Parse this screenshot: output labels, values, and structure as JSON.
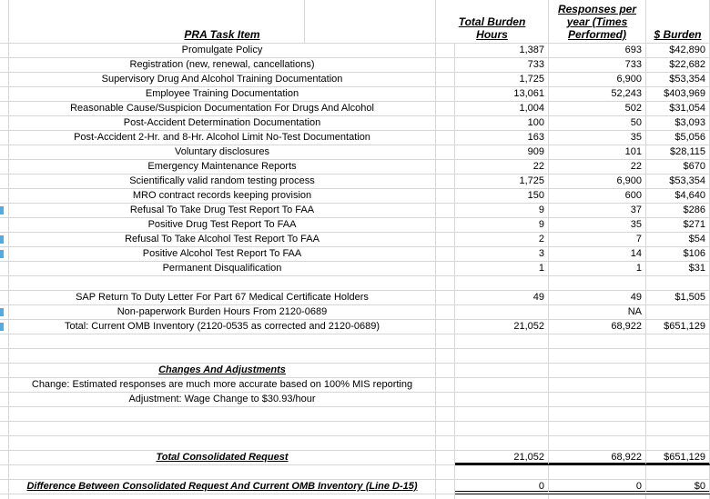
{
  "sheet": {
    "columns": {
      "task_item": "PRA Task Item",
      "total_burden_hours": "Total Burden Hours",
      "responses_per_year": "Responses per year (Times Performed)",
      "dollar_burden": "$ Burden"
    },
    "rows": [
      {
        "item": "Promulgate Policy",
        "hours": "1,387",
        "responses": "693",
        "burden": "$42,890"
      },
      {
        "item": "Registration (new, renewal, cancellations)",
        "hours": "733",
        "responses": "733",
        "burden": "$22,682"
      },
      {
        "item": "Supervisory Drug And Alcohol Training Documentation",
        "hours": "1,725",
        "responses": "6,900",
        "burden": "$53,354"
      },
      {
        "item": "Employee Training Documentation",
        "hours": "13,061",
        "responses": "52,243",
        "burden": "$403,969"
      },
      {
        "item": "Reasonable Cause/Suspicion Documentation For Drugs And Alcohol",
        "hours": "1,004",
        "responses": "502",
        "burden": "$31,054"
      },
      {
        "item": "Post-Accident Determination Documentation",
        "hours": "100",
        "responses": "50",
        "burden": "$3,093"
      },
      {
        "item": "Post-Accident 2-Hr. and 8-Hr. Alcohol Limit No-Test Documentation",
        "hours": "163",
        "responses": "35",
        "burden": "$5,056"
      },
      {
        "item": "Voluntary disclosures",
        "hours": "909",
        "responses": "101",
        "burden": "$28,115"
      },
      {
        "item": "Emergency Maintenance Reports",
        "hours": "22",
        "responses": "22",
        "burden": "$670"
      },
      {
        "item": "Scientifically valid random testing process",
        "hours": "1,725",
        "responses": "6,900",
        "burden": "$53,354"
      },
      {
        "item": "MRO contract records keeping provision",
        "hours": "150",
        "responses": "600",
        "burden": "$4,640"
      },
      {
        "item": "Refusal To Take Drug Test Report To FAA",
        "hours": "9",
        "responses": "37",
        "burden": "$286"
      },
      {
        "item": "Positive Drug Test Report To FAA",
        "hours": "9",
        "responses": "35",
        "burden": "$271"
      },
      {
        "item": "Refusal To Take Alcohol Test Report To FAA",
        "hours": "2",
        "responses": "7",
        "burden": "$54"
      },
      {
        "item": "Positive Alcohol Test Report To FAA",
        "hours": "3",
        "responses": "14",
        "burden": "$106"
      },
      {
        "item": "Permanent Disqualification",
        "hours": "1",
        "responses": "1",
        "burden": "$31"
      },
      {
        "item": "",
        "hours": "",
        "responses": "",
        "burden": ""
      },
      {
        "item": "SAP Return To Duty Letter For Part 67 Medical Certificate Holders",
        "hours": "49",
        "responses": "49",
        "burden": "$1,505"
      },
      {
        "item": "Non-paperwork Burden Hours From 2120-0689",
        "hours": "",
        "responses": "NA",
        "burden": ""
      },
      {
        "item": "Total: Current OMB Inventory (2120-0535 as corrected and 2120-0689)",
        "hours": "21,052",
        "responses": "68,922",
        "burden": "$651,129"
      },
      {
        "item": "",
        "hours": "",
        "responses": "",
        "burden": ""
      },
      {
        "item": "",
        "hours": "",
        "responses": "",
        "burden": ""
      },
      {
        "item": "Changes And Adjustments",
        "hours": "",
        "responses": "",
        "burden": ""
      },
      {
        "item": "Change: Estimated responses are much more accurate based on 100% MIS reporting",
        "hours": "",
        "responses": "",
        "burden": ""
      },
      {
        "item": "Adjustment: Wage Change to $30.93/hour",
        "hours": "",
        "responses": "",
        "burden": ""
      },
      {
        "item": "",
        "hours": "",
        "responses": "",
        "burden": ""
      },
      {
        "item": "",
        "hours": "",
        "responses": "",
        "burden": ""
      },
      {
        "item": "",
        "hours": "",
        "responses": "",
        "burden": ""
      },
      {
        "item": "Total Consolidated Request",
        "hours": "21,052",
        "responses": "68,922",
        "burden": "$651,129"
      },
      {
        "item": "",
        "hours": "",
        "responses": "",
        "burden": ""
      },
      {
        "item": "Difference Between Consolidated Request And Current OMB Inventory (Line D-15)",
        "hours": "0",
        "responses": "0",
        "burden": "$0"
      },
      {
        "item": "",
        "hours": "",
        "responses": "",
        "burden": ""
      }
    ],
    "left_edge_fragments": {
      "description": "clipped blue text from hidden column at left edge",
      "color": "#5ba8de",
      "row_indices": [
        11,
        13,
        14,
        18,
        19
      ]
    },
    "grid_color": "#d6d6d6"
  }
}
